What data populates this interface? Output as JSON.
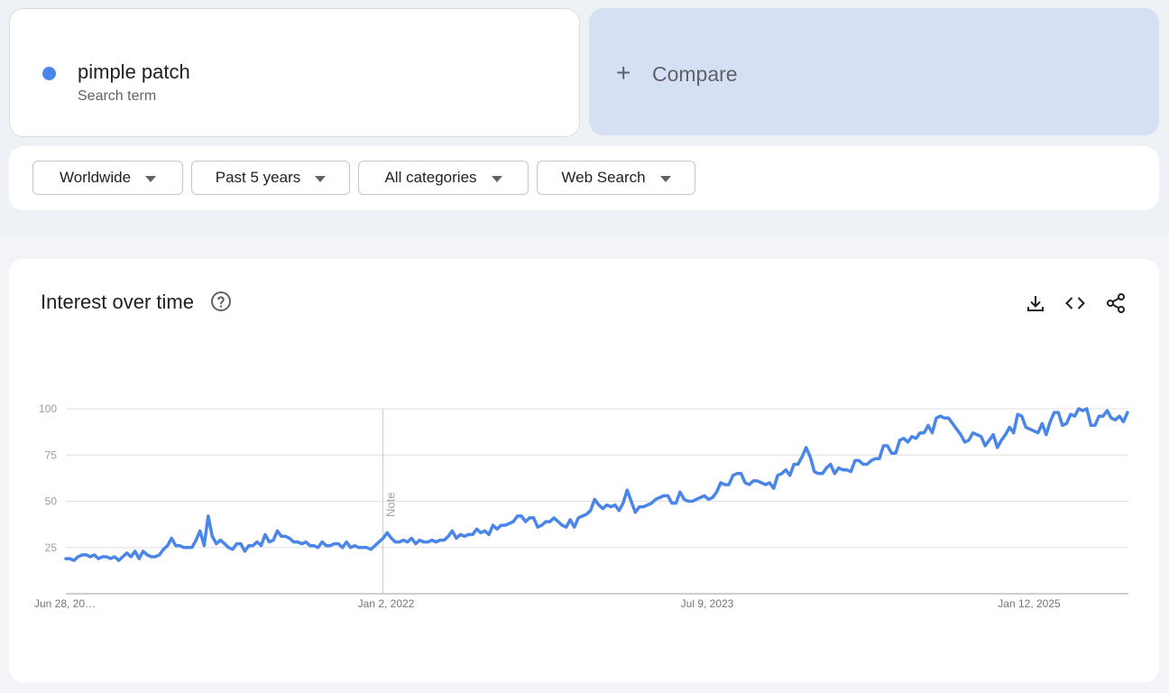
{
  "term": {
    "title": "pimple patch",
    "subtitle": "Search term",
    "color": "#4a86e8"
  },
  "compare": {
    "label": "Compare",
    "icon": "plus-icon"
  },
  "filters": {
    "region": "Worldwide",
    "period": "Past 5 years",
    "category": "All categories",
    "search_type": "Web Search"
  },
  "chart_header": {
    "title": "Interest over time",
    "icons": [
      "help-icon",
      "download-icon",
      "embed-code-icon",
      "share-icon"
    ]
  },
  "chart_data": {
    "type": "line",
    "title": "",
    "xlabel": "",
    "ylabel": "",
    "ylim": [
      0,
      100
    ],
    "yticks": [
      25,
      50,
      75,
      100
    ],
    "grid": true,
    "xtick_labels": [
      "Jun 28, 20…",
      "Jan 2, 2022",
      "Jul 9, 2023",
      "Jan 12, 2025"
    ],
    "x_start": "Jun 28, 2020",
    "x_end": "Jun 2025",
    "annotation": {
      "label": "Note",
      "x": "Jan 2, 2022"
    },
    "series": [
      {
        "color": "#4a86e8",
        "values": [
          19,
          19,
          18,
          20,
          21,
          21,
          20,
          21,
          19,
          20,
          20,
          19,
          20,
          18,
          20,
          22,
          20,
          23,
          19,
          23,
          21,
          20,
          20,
          21,
          24,
          26,
          30,
          26,
          26,
          25,
          25,
          25,
          29,
          34,
          26,
          42,
          31,
          27,
          29,
          27,
          25,
          24,
          27,
          27,
          23,
          26,
          26,
          28,
          26,
          32,
          28,
          29,
          34,
          31,
          31,
          30,
          28,
          28,
          27,
          28,
          26,
          26,
          25,
          28,
          26,
          26,
          27,
          27,
          25,
          28,
          25,
          26,
          25,
          25,
          25,
          24,
          26,
          28,
          30,
          33,
          30,
          28,
          28,
          29,
          28,
          30,
          27,
          29,
          28,
          28,
          29,
          28,
          29,
          29,
          31,
          34,
          30,
          32,
          31,
          32,
          32,
          35,
          33,
          34,
          32,
          37,
          35,
          37,
          37,
          38,
          39,
          42,
          42,
          39,
          41,
          41,
          36,
          37,
          39,
          39,
          41,
          39,
          37,
          36,
          40,
          36,
          41,
          42,
          43,
          45,
          51,
          48,
          46,
          48,
          47,
          48,
          45,
          49,
          56,
          50,
          44,
          47,
          47,
          48,
          49,
          51,
          52,
          53,
          53,
          49,
          49,
          55,
          51,
          50,
          50,
          51,
          52,
          53,
          51,
          52,
          55,
          60,
          59,
          59,
          64,
          65,
          65,
          60,
          59,
          61,
          61,
          60,
          59,
          60,
          57,
          64,
          65,
          67,
          64,
          70,
          70,
          74,
          79,
          74,
          66,
          65,
          65,
          68,
          70,
          65,
          68,
          67,
          67,
          66,
          72,
          72,
          70,
          70,
          72,
          73,
          73,
          80,
          80,
          76,
          76,
          83,
          84,
          82,
          85,
          84,
          87,
          87,
          91,
          87,
          95,
          96,
          95,
          95,
          92,
          89,
          86,
          82,
          83,
          87,
          86,
          85,
          80,
          83,
          86,
          79,
          83,
          86,
          90,
          87,
          97,
          96,
          90,
          89,
          88,
          87,
          92,
          86,
          93,
          98,
          98,
          91,
          92,
          97,
          96,
          100,
          99,
          100,
          91,
          91,
          96,
          96,
          99,
          95,
          94,
          96,
          93,
          98
        ]
      }
    ]
  }
}
